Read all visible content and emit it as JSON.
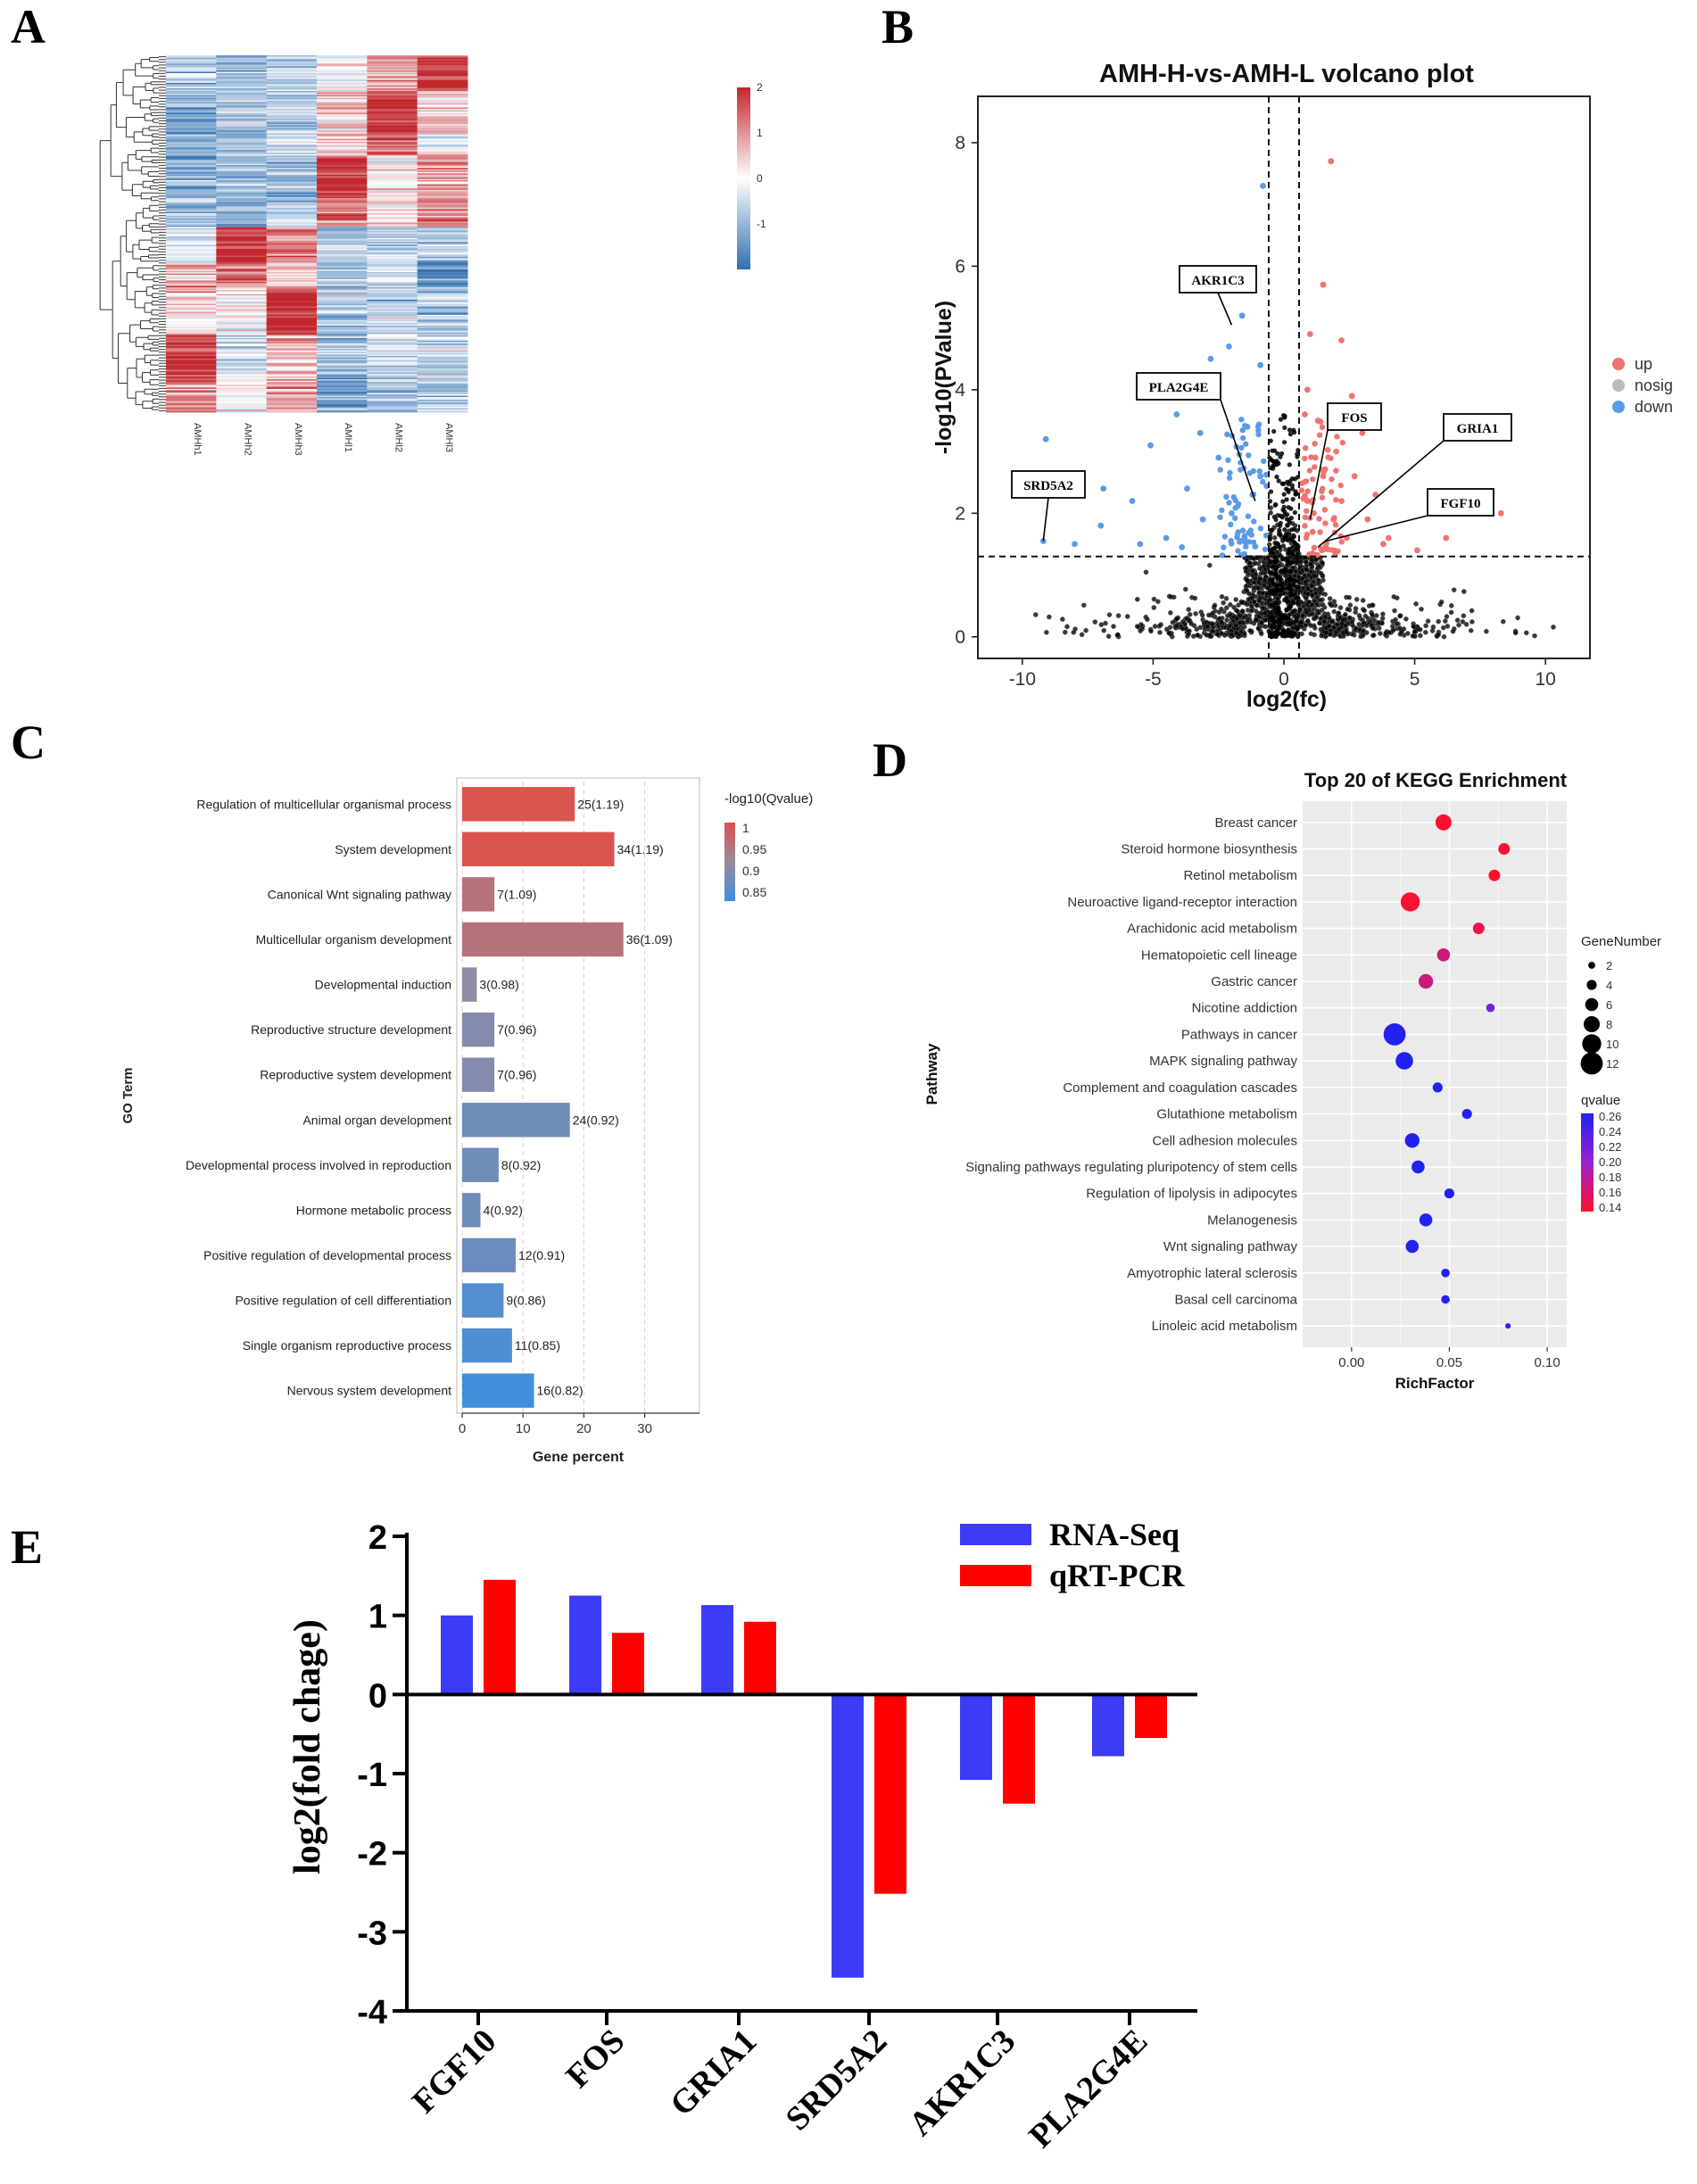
{
  "panels": {
    "a": "A",
    "b": "B",
    "c": "C",
    "d": "D",
    "e": "E"
  },
  "chart_data": [
    {
      "id": "heatmap",
      "type": "heatmap",
      "columns": [
        "AMHh1",
        "AMHh2",
        "AMHh3",
        "AMHl1",
        "AMHl2",
        "AMHl3"
      ],
      "colorbar": {
        "ticks": [
          2,
          1,
          0,
          -1
        ],
        "low_color": "#2f6fb0",
        "mid_color": "#ffffff",
        "high_color": "#c1272d"
      },
      "blocks": [
        {
          "rows": 0.1,
          "values": [
            -0.8,
            -1.0,
            -0.6,
            0.1,
            0.8,
            1.9
          ]
        },
        {
          "rows": 0.12,
          "values": [
            -1.0,
            -0.7,
            -0.8,
            0.6,
            1.8,
            0.5
          ]
        },
        {
          "rows": 0.06,
          "values": [
            -0.9,
            -0.8,
            -0.5,
            0.5,
            1.3,
            -0.2
          ]
        },
        {
          "rows": 0.12,
          "values": [
            -1.2,
            -0.9,
            -0.8,
            1.9,
            0.3,
            0.9
          ]
        },
        {
          "rows": 0.08,
          "values": [
            -0.9,
            -1.1,
            -0.6,
            1.2,
            0.2,
            1.1
          ]
        },
        {
          "rows": 0.1,
          "values": [
            -0.3,
            1.9,
            1.2,
            -0.6,
            -0.4,
            -0.8
          ]
        },
        {
          "rows": 0.07,
          "values": [
            0.8,
            1.2,
            0.5,
            -0.8,
            -0.5,
            -1.4
          ]
        },
        {
          "rows": 0.13,
          "values": [
            0.4,
            0.1,
            1.9,
            -0.8,
            -0.6,
            -0.7
          ]
        },
        {
          "rows": 0.14,
          "values": [
            1.9,
            -0.4,
            0.6,
            -0.9,
            -0.5,
            -0.6
          ]
        },
        {
          "rows": 0.08,
          "values": [
            1.0,
            0.2,
            0.8,
            -1.3,
            -0.7,
            -0.8
          ]
        }
      ]
    },
    {
      "id": "volcano",
      "type": "scatter",
      "title": "AMH-H-vs-AMH-L volcano plot",
      "xlabel": "log2(fc)",
      "ylabel": "-log10(PValue)",
      "xlim": [
        -11.7,
        11.7
      ],
      "ylim": [
        -0.35,
        8.75
      ],
      "xticks": [
        -10,
        -5,
        0,
        5,
        10
      ],
      "yticks": [
        0,
        2,
        4,
        6,
        8
      ],
      "thresholds": {
        "x": [
          -0.58,
          0.58
        ],
        "y": 1.3
      },
      "legend": [
        {
          "name": "up",
          "color": "#f0746e"
        },
        {
          "name": "nosig",
          "color": "#bbbbbb"
        },
        {
          "name": "down",
          "color": "#5b9be6"
        }
      ],
      "labels": [
        {
          "text": "AKR1C3",
          "x": -2.0,
          "y": 5.05
        },
        {
          "text": "PLA2G4E",
          "x": -1.1,
          "y": 2.2
        },
        {
          "text": "SRD5A2",
          "x": -9.2,
          "y": 1.55
        },
        {
          "text": "FOS",
          "x": 1.0,
          "y": 1.9
        },
        {
          "text": "GRIA1",
          "x": 1.3,
          "y": 1.45
        },
        {
          "text": "FGF10",
          "x": 1.6,
          "y": 1.55
        }
      ],
      "up_points": [
        [
          1.8,
          7.7
        ],
        [
          1.0,
          4.9
        ],
        [
          1.5,
          5.7
        ],
        [
          2.2,
          4.8
        ],
        [
          2.6,
          3.9
        ],
        [
          3.0,
          3.3
        ],
        [
          1.3,
          3.5
        ],
        [
          2.0,
          3.0
        ],
        [
          2.7,
          2.6
        ],
        [
          3.5,
          2.3
        ],
        [
          2.2,
          2.2
        ],
        [
          3.2,
          1.9
        ],
        [
          4.0,
          1.6
        ],
        [
          1.5,
          2.6
        ],
        [
          0.9,
          2.2
        ],
        [
          1.1,
          1.7
        ],
        [
          2.4,
          1.6
        ],
        [
          1.9,
          1.9
        ],
        [
          5.1,
          1.4
        ],
        [
          3.8,
          1.5
        ],
        [
          6.2,
          1.6
        ],
        [
          8.3,
          2.0
        ],
        [
          0.8,
          3.6
        ],
        [
          1.2,
          2.9
        ],
        [
          0.9,
          4.0
        ]
      ],
      "down_points": [
        [
          -0.8,
          7.3
        ],
        [
          -1.6,
          5.2
        ],
        [
          -2.1,
          4.7
        ],
        [
          -2.8,
          4.5
        ],
        [
          -0.9,
          4.4
        ],
        [
          -4.1,
          3.6
        ],
        [
          -3.2,
          3.3
        ],
        [
          -1.4,
          3.4
        ],
        [
          -5.1,
          3.1
        ],
        [
          -2.5,
          2.9
        ],
        [
          -3.7,
          2.4
        ],
        [
          -1.2,
          2.3
        ],
        [
          -2.0,
          2.0
        ],
        [
          -5.8,
          2.2
        ],
        [
          -6.9,
          2.4
        ],
        [
          -3.1,
          1.9
        ],
        [
          -4.5,
          1.6
        ],
        [
          -9.1,
          3.2
        ],
        [
          -7.0,
          1.8
        ],
        [
          -5.5,
          1.5
        ],
        [
          -1.5,
          1.6
        ],
        [
          -8.0,
          1.5
        ],
        [
          -9.2,
          1.55
        ],
        [
          -3.9,
          1.45
        ],
        [
          -0.9,
          2.6
        ]
      ]
    },
    {
      "id": "go",
      "type": "bar",
      "orientation": "horizontal",
      "xlabel": "Gene percent",
      "ylabel": "GO Term",
      "xticks": [
        0,
        10,
        20,
        30
      ],
      "xlim": [
        0,
        39
      ],
      "legend_title": "-log10(Qvalue)",
      "legend_ticks": [
        "1",
        "0.95",
        "0.9",
        "0.85"
      ],
      "categories": [
        "Regulation of multicellular organismal process",
        "System development",
        "Canonical Wnt signaling pathway",
        "Multicellular organism development",
        "Developmental induction",
        "Reproductive structure development",
        "Reproductive system development",
        "Animal organ development",
        "Developmental process involved in reproduction",
        "Hormone metabolic process",
        "Positive regulation of developmental process",
        "Positive regulation of cell differentiation",
        "Single organism reproductive process",
        "Nervous system development"
      ],
      "values": [
        18.5,
        25,
        5.3,
        26.5,
        2.4,
        5.3,
        5.3,
        17.7,
        6.0,
        3.0,
        8.8,
        6.8,
        8.2,
        11.8
      ],
      "qvalues": [
        1.19,
        1.19,
        1.09,
        1.09,
        0.98,
        0.96,
        0.96,
        0.92,
        0.92,
        0.92,
        0.91,
        0.86,
        0.85,
        0.82
      ],
      "bar_labels": [
        "25(1.19)",
        "34(1.19)",
        "7(1.09)",
        "36(1.09)",
        "3(0.98)",
        "7(0.96)",
        "7(0.96)",
        "24(0.92)",
        "8(0.92)",
        "4(0.92)",
        "12(0.91)",
        "9(0.86)",
        "11(0.85)",
        "16(0.82)"
      ]
    },
    {
      "id": "kegg",
      "type": "scatter",
      "title": "Top 20 of KEGG Enrichment",
      "xlabel": "RichFactor",
      "ylabel": "Pathway",
      "xlim": [
        -0.025,
        0.11
      ],
      "xticks": [
        "0.00",
        "0.05",
        "0.10"
      ],
      "size_legend_title": "GeneNumber",
      "size_legend": [
        2,
        4,
        6,
        8,
        10,
        12
      ],
      "color_legend_title": "qvalue",
      "color_legend_ticks": [
        "0.26",
        "0.24",
        "0.22",
        "0.20",
        "0.18",
        "0.16",
        "0.14"
      ],
      "pathways": [
        "Breast cancer",
        "Steroid hormone biosynthesis",
        "Retinol metabolism",
        "Neuroactive ligand-receptor interaction",
        "Arachidonic acid metabolism",
        "Hematopoietic cell lineage",
        "Gastric cancer",
        "Nicotine addiction",
        "Pathways in cancer",
        "MAPK signaling pathway",
        "Complement and coagulation cascades",
        "Glutathione metabolism",
        "Cell adhesion molecules",
        "Signaling pathways regulating pluripotency of stem cells",
        "Regulation of lipolysis in adipocytes",
        "Melanogenesis",
        "Wnt signaling pathway",
        "Amyotrophic lateral sclerosis",
        "Basal cell carcinoma",
        "Linoleic acid metabolism"
      ],
      "rich_factor": [
        0.047,
        0.078,
        0.073,
        0.03,
        0.065,
        0.047,
        0.038,
        0.071,
        0.022,
        0.027,
        0.044,
        0.059,
        0.031,
        0.034,
        0.05,
        0.038,
        0.031,
        0.048,
        0.048,
        0.08
      ],
      "gene_number": [
        8,
        5,
        5,
        10,
        5,
        6,
        7,
        3,
        12,
        9,
        4,
        4,
        7,
        6,
        4,
        6,
        6,
        3,
        3,
        1
      ],
      "qvalue": [
        0.14,
        0.14,
        0.14,
        0.14,
        0.15,
        0.17,
        0.17,
        0.22,
        0.26,
        0.26,
        0.26,
        0.26,
        0.26,
        0.26,
        0.26,
        0.26,
        0.26,
        0.26,
        0.26,
        0.26
      ]
    },
    {
      "id": "validation",
      "type": "bar",
      "ylabel": "log2(fold chage)",
      "ylim": [
        -4,
        2
      ],
      "yticks": [
        2,
        1,
        0,
        -1,
        -2,
        -3,
        -4
      ],
      "categories": [
        "FGF10",
        "FOS",
        "GRIA1",
        "SRD5A2",
        "AKR1C3",
        "PLA2G4E"
      ],
      "series": [
        {
          "name": "RNA-Seq",
          "color": "#3c3cf5",
          "values": [
            1.0,
            1.25,
            1.13,
            -3.58,
            -1.08,
            -0.78
          ]
        },
        {
          "name": "qRT-PCR",
          "color": "#ff0000",
          "values": [
            1.45,
            0.78,
            0.92,
            -2.52,
            -1.38,
            -0.55
          ]
        }
      ]
    }
  ]
}
